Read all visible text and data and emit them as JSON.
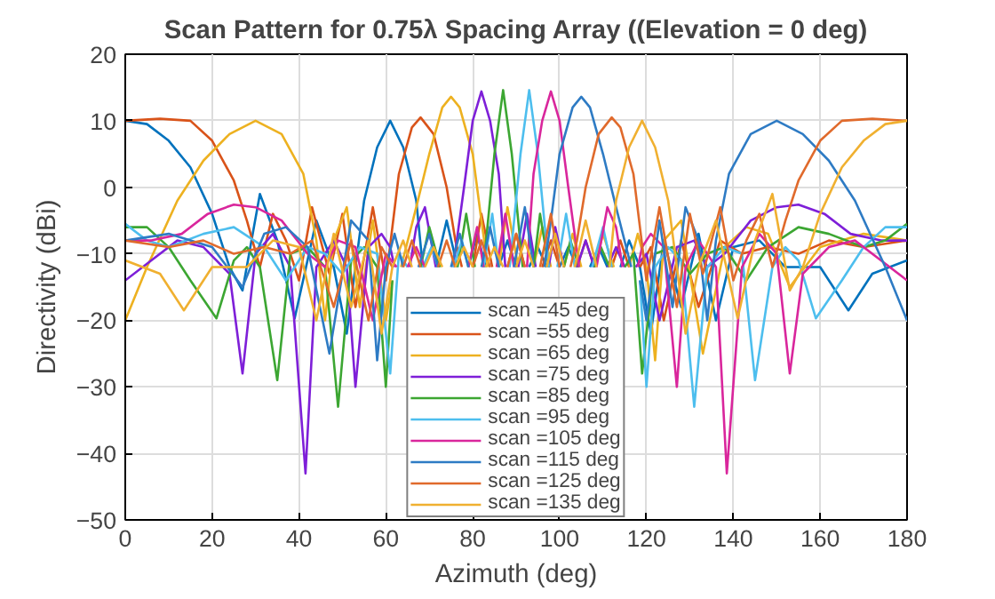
{
  "chart_data": {
    "type": "line",
    "title": "Scan Pattern for 0.75λ Spacing Array ((Elevation = 0 deg)",
    "xlabel": "Azimuth (deg)",
    "ylabel": "Directivity (dBi)",
    "xlim": [
      0,
      180
    ],
    "ylim": [
      -50,
      20
    ],
    "xticks": [
      0,
      20,
      40,
      60,
      80,
      100,
      120,
      140,
      160,
      180
    ],
    "yticks": [
      -50,
      -40,
      -30,
      -20,
      -10,
      0,
      10,
      20
    ],
    "grid": true,
    "legend": "bottom",
    "marker": "none",
    "line_style": "solid",
    "series": [
      {
        "name": "scan =45 deg",
        "color": "#0072bd",
        "x": [
          0,
          5,
          10,
          15,
          20,
          24,
          27,
          31,
          35,
          39,
          44,
          48,
          51,
          55,
          58,
          61,
          64,
          67,
          68.5,
          70,
          71.5,
          74,
          76.5,
          78,
          79,
          81,
          83,
          84.5,
          86,
          88,
          90,
          91.5,
          93,
          95,
          97,
          98.5,
          100,
          102,
          104,
          105.5,
          107,
          109,
          111,
          112.5,
          114,
          116,
          118.5,
          121,
          124,
          128,
          132,
          136,
          140,
          146,
          152,
          160,
          166.5,
          172,
          180
        ],
        "values": [
          10,
          9.5,
          7,
          3,
          -4,
          -12,
          -15.5,
          -1,
          -8,
          -19.7,
          -5,
          -12,
          -22,
          -2,
          6,
          10,
          6,
          -2,
          -12,
          null,
          -12,
          -5,
          -12,
          null,
          -12,
          -7,
          -12,
          null,
          -12,
          -8,
          -12,
          null,
          -12,
          -9,
          -12,
          null,
          -12,
          -9,
          -12,
          null,
          -12,
          -9,
          -12,
          null,
          -12,
          -8,
          -12,
          -22,
          -8,
          -18,
          -7,
          -20,
          -9,
          -8,
          -12,
          -12,
          -18.5,
          -13,
          -11
        ]
      },
      {
        "name": "scan =55 deg",
        "color": "#d95319",
        "x": [
          0,
          8,
          15,
          20,
          25,
          28,
          31,
          34,
          37,
          40,
          43,
          47,
          50,
          53,
          57,
          60,
          63,
          66,
          68,
          71,
          74,
          76,
          77.5,
          79,
          80,
          82,
          84.5,
          86,
          88,
          90,
          92,
          94,
          96,
          98,
          100,
          102,
          104,
          106,
          108,
          110,
          112,
          114,
          116,
          117,
          118.5,
          121,
          124,
          128,
          132,
          137,
          142,
          148,
          155,
          162,
          170,
          180
        ],
        "values": [
          10,
          10.3,
          10,
          7,
          1,
          -5,
          -12,
          -4,
          -8,
          -14,
          -3,
          -13,
          -4,
          -18,
          -3,
          -14,
          2,
          9,
          10.5,
          8,
          0,
          -8,
          -12,
          null,
          -12,
          -4,
          -12,
          null,
          -12,
          -7,
          -12,
          null,
          -12,
          -8,
          -12,
          null,
          -12,
          -8,
          -12,
          null,
          -12,
          -8,
          -12,
          null,
          -12,
          -9,
          -20,
          -8,
          -18,
          -8,
          -10,
          -9,
          -10,
          -8,
          -9,
          -8
        ]
      },
      {
        "name": "scan =65 deg",
        "color": "#edb120",
        "x": [
          0,
          5,
          12,
          18,
          24,
          30,
          36,
          41,
          44,
          46,
          48,
          51,
          54,
          57,
          60,
          61.5,
          62,
          63.5,
          67,
          70,
          73,
          75,
          77,
          80,
          82,
          83.5,
          85,
          86,
          88,
          90.5,
          92,
          94,
          96,
          98,
          99.5,
          101,
          103,
          105,
          106.5,
          108,
          110,
          112.5,
          114,
          116,
          118,
          120,
          122,
          124,
          128,
          133,
          138,
          143,
          148,
          153,
          160,
          170,
          180
        ],
        "values": [
          -20,
          -12,
          -2,
          4,
          8,
          10,
          8,
          2,
          -8,
          -20,
          -8,
          -3,
          -18,
          -5,
          -20,
          -14,
          null,
          -12,
          -3,
          5,
          12,
          13.6,
          12,
          5,
          -5,
          -12,
          null,
          -12,
          -3,
          -12,
          null,
          -12,
          -6,
          -12,
          null,
          -12,
          -7,
          -12,
          null,
          -12,
          -7,
          -12,
          null,
          -12,
          -7,
          -12,
          -26,
          -8,
          -5,
          -25,
          -9,
          -6,
          -7,
          -15,
          -9,
          -7,
          -8
        ]
      },
      {
        "name": "scan =75 deg",
        "color": "#7e1fd8",
        "x": [
          0,
          6,
          12,
          18,
          24,
          27,
          30,
          34,
          38,
          41.5,
          44,
          48,
          51,
          53,
          56,
          59,
          61,
          62,
          64,
          65.5,
          67,
          69,
          71.5,
          73.5,
          75.5,
          78,
          80,
          82,
          84,
          86,
          87.5,
          89,
          90.5,
          92.5,
          94.5,
          96,
          97.5,
          99,
          101,
          102.5,
          104,
          106,
          108,
          109.5,
          111,
          113,
          115,
          116,
          117.5,
          120,
          123,
          127,
          131,
          134,
          138,
          144,
          150,
          155,
          161,
          167,
          174,
          180
        ],
        "values": [
          -14,
          -11,
          -8,
          -9,
          -13,
          -28,
          -10,
          -7,
          -12,
          -43,
          -12,
          -8,
          -12,
          -30,
          -9,
          -7,
          -9,
          -12,
          null,
          -12,
          -6,
          -3,
          -12,
          null,
          -12,
          0,
          10,
          14.4,
          10,
          2,
          -12,
          null,
          -12,
          -4,
          -12,
          null,
          -12,
          -6,
          -12,
          null,
          -12,
          -8,
          -12,
          null,
          -12,
          -9,
          -12,
          null,
          -12,
          -10,
          -20,
          -9,
          -8,
          -12,
          -10,
          -5,
          -3,
          -2.6,
          -4,
          -7,
          -8,
          -8
        ]
      },
      {
        "name": "scan =85 deg",
        "color": "#3ca632",
        "x": [
          0,
          5,
          10,
          15,
          21,
          25,
          28,
          31,
          35,
          38,
          42,
          46,
          49,
          52,
          55,
          58,
          60,
          61.5,
          64,
          68,
          70,
          72.5,
          74.5,
          76.5,
          78.5,
          80.5,
          81.5,
          82.5,
          85,
          87,
          89,
          91.5,
          93,
          94,
          95.5,
          97.5,
          99,
          101,
          102.5,
          104.5,
          106,
          108,
          109.5,
          111.5,
          113,
          115,
          117,
          119,
          122,
          126,
          130,
          134,
          138,
          143,
          148,
          155,
          162,
          170,
          175,
          180
        ],
        "values": [
          -6,
          -6,
          -9,
          -14,
          -19.7,
          -11,
          -9,
          -12,
          -29,
          -10,
          -9,
          -12,
          -33,
          -11,
          -9,
          -12,
          -30,
          -14,
          null,
          -12,
          -6,
          -12,
          null,
          -12,
          -4,
          -12,
          null,
          -12,
          5,
          14.6,
          5,
          -12,
          null,
          -12,
          -4,
          -12,
          null,
          -12,
          -8,
          -12,
          null,
          -12,
          -9,
          -12,
          null,
          -12,
          -10,
          -28,
          -10,
          -9,
          -13,
          -10,
          -9,
          -14,
          -9,
          -6,
          -7,
          -9,
          -8,
          -5.5
        ]
      },
      {
        "name": "scan =95 deg",
        "color": "#4dbeee",
        "x": [
          0,
          5,
          10,
          18,
          25,
          32,
          37,
          42,
          46,
          50,
          54,
          58,
          61,
          63,
          65,
          66.5,
          68.5,
          70.5,
          72,
          74,
          75.5,
          77.5,
          79,
          81,
          82.5,
          84.5,
          86,
          87,
          88.5,
          91,
          93,
          95,
          97.5,
          98.5,
          99.5,
          101.5,
          103.5,
          105.5,
          107.5,
          110,
          112,
          116,
          118.5,
          120,
          122,
          125,
          128,
          131,
          134,
          138,
          142,
          145,
          149,
          152,
          155,
          159,
          165,
          170,
          175,
          180
        ],
        "values": [
          -5.5,
          -8,
          -9,
          -7,
          -6,
          -9,
          -14,
          -9,
          -10,
          -13,
          -9,
          -10,
          -28,
          -10,
          -12,
          null,
          -12,
          -9,
          -12,
          null,
          -12,
          -8,
          -12,
          null,
          -12,
          -4,
          -12,
          null,
          -12,
          5,
          14.6,
          5,
          -12,
          null,
          -12,
          -4,
          -12,
          null,
          -12,
          -6,
          -12,
          null,
          -14,
          -30,
          -12,
          -9,
          -11,
          -33,
          -12,
          -9,
          -10,
          -29,
          -12,
          -9,
          -11,
          -19.7,
          -14,
          -9,
          -6,
          -6
        ]
      },
      {
        "name": "scan =105 deg",
        "color": "#d9269c",
        "x": [
          0,
          6,
          13,
          19,
          25,
          30,
          36,
          42,
          46,
          49,
          53,
          57,
          60,
          62.5,
          64,
          65,
          67,
          69,
          70.5,
          72,
          74,
          76,
          77.5,
          79,
          81,
          82.5,
          84,
          85.5,
          87.5,
          89.5,
          91,
          92.5,
          94,
          96,
          98,
          100,
          102,
          104.5,
          106.5,
          108.5,
          111,
          113,
          114.5,
          116,
          118,
          119,
          121,
          124,
          127,
          129,
          132,
          136,
          138.5,
          142,
          146,
          150,
          153,
          156,
          162,
          168,
          174,
          180
        ],
        "values": [
          -8,
          -8,
          -7,
          -4,
          -2.6,
          -3,
          -5,
          -10,
          -12,
          -8,
          -9,
          -20,
          -10,
          -12,
          null,
          -12,
          -9,
          -12,
          null,
          null,
          null,
          null,
          null,
          -12,
          -6,
          -12,
          null,
          -12,
          -4,
          -12,
          null,
          -12,
          2,
          10,
          14.4,
          10,
          0,
          -12,
          null,
          -12,
          -3,
          -6,
          -12,
          null,
          -12,
          -9,
          -7,
          -9,
          -30,
          -12,
          -8,
          -12,
          -43,
          -12,
          -7,
          -10,
          -28,
          -13,
          -9,
          -8,
          -11,
          -14
        ]
      },
      {
        "name": "scan =115 deg",
        "color": "#2e7bc4",
        "x": [
          0,
          10,
          20,
          27,
          32,
          37,
          42,
          47,
          52,
          56,
          58,
          60,
          62,
          64,
          66,
          67.5,
          70,
          72,
          73.5,
          75,
          77,
          79,
          80.5,
          82,
          84,
          86,
          88,
          89.5,
          92,
          94,
          95,
          96.5,
          98,
          100,
          103,
          105,
          107,
          110,
          113,
          116.5,
          117.5,
          118.5,
          120,
          123,
          126,
          129,
          132,
          134,
          136,
          139,
          144,
          150,
          156,
          162,
          168,
          175,
          180
        ],
        "values": [
          -8,
          -7,
          -9,
          -15,
          -7,
          -6,
          -9,
          -25,
          -5,
          -8,
          -26,
          -12,
          -7,
          -12,
          null,
          -12,
          -7,
          -12,
          null,
          -12,
          -7,
          -12,
          null,
          -12,
          -6,
          -12,
          null,
          -12,
          -3,
          -12,
          null,
          -12,
          -5,
          5,
          12,
          13.6,
          12,
          5,
          -3,
          -12,
          null,
          -14,
          -20,
          -5,
          -18,
          -3,
          -8,
          -20,
          -8,
          2,
          8,
          10,
          8,
          4,
          -2,
          -12,
          -20
        ]
      },
      {
        "name": "scan =125 deg",
        "color": "#e06a2c",
        "x": [
          0,
          10,
          18,
          25,
          32,
          38,
          43,
          48,
          52,
          56,
          59,
          61.5,
          63,
          64,
          66,
          68,
          70,
          72,
          74,
          76,
          78,
          80,
          82,
          84,
          86,
          88,
          90,
          92,
          94,
          95.5,
          98,
          100,
          101,
          102.5,
          104,
          106,
          109,
          112,
          114,
          117,
          120,
          123,
          127,
          130,
          133,
          137,
          140,
          143,
          146,
          149,
          152,
          155,
          160,
          165,
          172,
          180
        ],
        "values": [
          -8,
          -9,
          -8,
          -10,
          -9,
          -10,
          -8,
          -18,
          -8,
          -20,
          -9,
          -12,
          null,
          -12,
          -8,
          -12,
          null,
          -12,
          -8,
          -12,
          null,
          -12,
          -8,
          -12,
          null,
          -12,
          -7,
          -12,
          null,
          -12,
          -4,
          -12,
          null,
          -12,
          -8,
          0,
          8,
          10.5,
          9,
          2,
          -14,
          -3,
          -18,
          -4,
          -13,
          -3,
          -14,
          -8,
          -4,
          -12,
          -5,
          1,
          7,
          10,
          10.3,
          10
        ]
      },
      {
        "name": "scan =135 deg",
        "color": "#f0b030",
        "x": [
          0,
          8,
          13.5,
          20,
          28,
          34,
          40,
          44,
          48,
          52,
          56,
          59,
          61.5,
          64,
          66,
          67.5,
          69,
          71,
          73,
          74.5,
          76,
          78,
          80,
          81.5,
          83,
          85,
          87,
          88.5,
          90,
          92,
          94,
          95.5,
          97,
          99,
          101,
          102,
          103.5,
          106,
          108.5,
          110,
          111.5,
          113,
          116,
          119,
          122,
          125,
          129,
          132,
          136,
          141,
          145,
          149,
          153,
          156,
          160,
          165,
          170,
          175,
          180
        ],
        "values": [
          -11,
          -13,
          -18.5,
          -12,
          -12,
          -8,
          -9,
          -20,
          -7,
          -18,
          -8,
          -22,
          -12,
          -8,
          -12,
          null,
          -12,
          -9,
          -12,
          null,
          -12,
          -9,
          -12,
          null,
          -12,
          -9,
          -12,
          null,
          -12,
          -8,
          -12,
          null,
          -12,
          -7,
          -12,
          null,
          -12,
          -5,
          -12,
          null,
          -12,
          -2,
          6,
          10,
          6,
          -2,
          -22,
          -12,
          -5,
          -19.7,
          -8,
          -1,
          -15.5,
          -12,
          -4,
          3,
          7,
          9.5,
          10
        ]
      }
    ]
  }
}
